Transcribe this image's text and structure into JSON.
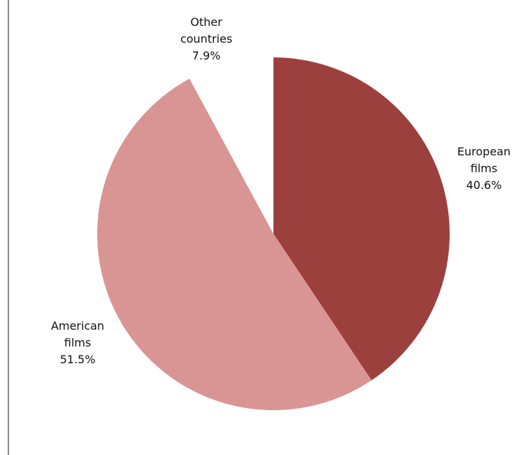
{
  "chart_data": {
    "type": "pie",
    "start_angle_deg": 0,
    "direction": "clockwise",
    "slices": [
      {
        "name": "European films",
        "label_lines": [
          "European",
          "films"
        ],
        "value": 40.6,
        "value_label": "40.6%",
        "color": "#9c403d"
      },
      {
        "name": "American films",
        "label_lines": [
          "American",
          "films"
        ],
        "value": 51.5,
        "value_label": "51.5%",
        "color": "#d99594"
      },
      {
        "name": "Other countries",
        "label_lines": [
          "Other",
          "countries"
        ],
        "value": 7.9,
        "value_label": "7.9%",
        "color": "#ffffff"
      }
    ]
  }
}
